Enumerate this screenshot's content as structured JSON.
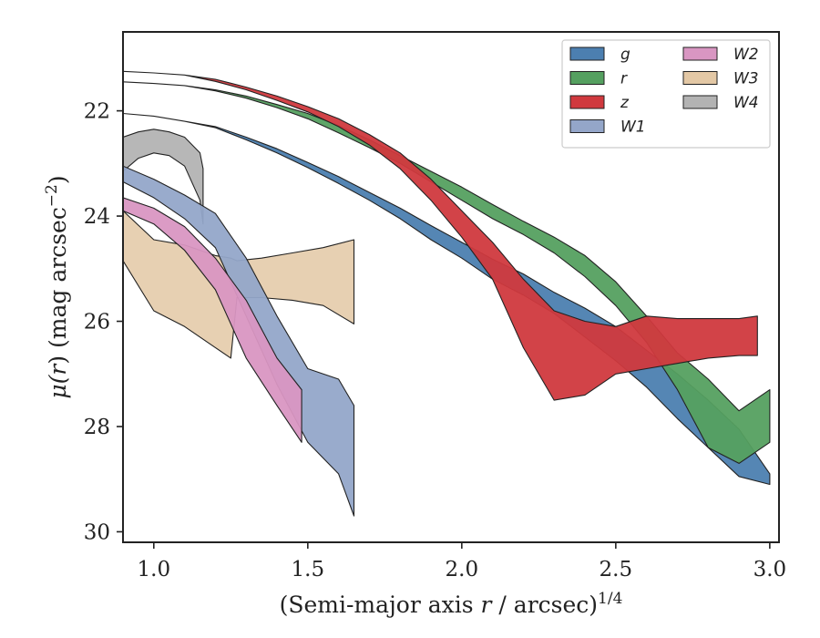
{
  "chart_data": {
    "type": "area",
    "xlabel_main": "(Semi-major axis ",
    "xlabel_var": "r",
    "xlabel_mid": " / arcsec)",
    "xlabel_sup": "1/4",
    "ylabel_main": "μ(",
    "ylabel_var": "r",
    "ylabel_mid": ") (mag arcsec",
    "ylabel_sup": "−2",
    "ylabel_end": ")",
    "xlim": [
      0.9,
      3.03
    ],
    "ylim": [
      30.2,
      20.5
    ],
    "xticks": [
      1.0,
      1.5,
      2.0,
      2.5,
      3.0
    ],
    "xtick_labels": [
      "1.0",
      "1.5",
      "2.0",
      "2.5",
      "3.0"
    ],
    "yticks": [
      22,
      24,
      26,
      28,
      30
    ],
    "ytick_labels": [
      "22",
      "24",
      "26",
      "28",
      "30"
    ],
    "legend_position": "top-right",
    "legend_columns": 2,
    "series": [
      {
        "name": "g",
        "color": "#4c7fb0",
        "x": [
          0.9,
          1.0,
          1.1,
          1.2,
          1.3,
          1.4,
          1.5,
          1.6,
          1.7,
          1.8,
          1.9,
          2.0,
          2.1,
          2.2,
          2.3,
          2.4,
          2.5,
          2.6,
          2.7,
          2.8,
          2.9,
          3.0
        ],
        "lower": [
          22.05,
          22.1,
          22.2,
          22.3,
          22.5,
          22.72,
          22.98,
          23.25,
          23.55,
          23.85,
          24.18,
          24.5,
          24.82,
          25.1,
          25.45,
          25.75,
          26.1,
          26.55,
          27.0,
          27.5,
          28.05,
          28.9
        ],
        "upper": [
          22.05,
          22.1,
          22.2,
          22.32,
          22.55,
          22.8,
          23.08,
          23.38,
          23.7,
          24.05,
          24.45,
          24.8,
          25.2,
          25.5,
          25.85,
          26.3,
          26.75,
          27.25,
          27.85,
          28.4,
          28.95,
          29.1
        ]
      },
      {
        "name": "r",
        "color": "#55a060",
        "x": [
          0.9,
          1.0,
          1.1,
          1.2,
          1.3,
          1.4,
          1.5,
          1.6,
          1.7,
          1.8,
          1.9,
          2.0,
          2.1,
          2.2,
          2.3,
          2.4,
          2.5,
          2.6,
          2.7,
          2.8,
          2.9,
          3.0
        ],
        "lower": [
          21.45,
          21.48,
          21.52,
          21.6,
          21.72,
          21.88,
          22.05,
          22.28,
          22.55,
          22.85,
          23.15,
          23.45,
          23.78,
          24.1,
          24.4,
          24.75,
          25.25,
          25.9,
          26.6,
          27.1,
          27.7,
          27.3
        ],
        "upper": [
          21.45,
          21.48,
          21.52,
          21.62,
          21.76,
          21.94,
          22.15,
          22.42,
          22.7,
          23.0,
          23.35,
          23.7,
          24.05,
          24.35,
          24.7,
          25.15,
          25.7,
          26.4,
          27.3,
          28.4,
          28.7,
          28.3
        ]
      },
      {
        "name": "z",
        "color": "#d0393e",
        "x": [
          0.9,
          1.0,
          1.1,
          1.2,
          1.3,
          1.4,
          1.5,
          1.6,
          1.7,
          1.8,
          1.9,
          2.0,
          2.1,
          2.2,
          2.3,
          2.4,
          2.5,
          2.6,
          2.7,
          2.8,
          2.9,
          2.96
        ],
        "lower": [
          21.25,
          21.28,
          21.32,
          21.4,
          21.55,
          21.72,
          21.92,
          22.15,
          22.45,
          22.8,
          23.3,
          23.9,
          24.5,
          25.2,
          25.8,
          26.0,
          26.1,
          25.9,
          25.95,
          25.95,
          25.95,
          25.9
        ],
        "upper": [
          21.25,
          21.28,
          21.32,
          21.44,
          21.6,
          21.8,
          22.02,
          22.3,
          22.65,
          23.1,
          23.7,
          24.4,
          25.2,
          26.5,
          27.5,
          27.4,
          27.0,
          26.9,
          26.8,
          26.7,
          26.65,
          26.65
        ]
      },
      {
        "name": "W1",
        "color": "#94a6c9",
        "x": [
          0.9,
          1.0,
          1.1,
          1.2,
          1.3,
          1.4,
          1.5,
          1.6,
          1.65
        ],
        "lower": [
          23.05,
          23.3,
          23.6,
          23.95,
          24.8,
          25.9,
          26.9,
          27.1,
          27.6
        ],
        "upper": [
          23.35,
          23.65,
          24.05,
          24.6,
          25.9,
          27.2,
          28.3,
          28.9,
          29.7
        ]
      },
      {
        "name": "W2",
        "color": "#d996c2",
        "x": [
          0.9,
          1.0,
          1.1,
          1.2,
          1.3,
          1.4,
          1.48
        ],
        "lower": [
          23.65,
          23.85,
          24.2,
          24.8,
          25.6,
          26.7,
          27.3
        ],
        "upper": [
          23.9,
          24.15,
          24.65,
          25.4,
          26.7,
          27.6,
          28.3
        ]
      },
      {
        "name": "W3",
        "color": "#e3c8a5",
        "x": [
          0.9,
          1.0,
          1.1,
          1.2,
          1.25,
          1.27,
          1.35,
          1.45,
          1.55,
          1.65
        ],
        "lower": [
          23.9,
          24.45,
          24.55,
          24.75,
          24.8,
          24.85,
          24.8,
          24.7,
          24.6,
          24.45
        ],
        "upper": [
          24.85,
          25.8,
          26.1,
          26.5,
          26.7,
          25.55,
          25.55,
          25.6,
          25.7,
          26.05
        ]
      },
      {
        "name": "W4",
        "color": "#b3b3b3",
        "x": [
          0.9,
          0.95,
          1.0,
          1.05,
          1.1,
          1.15,
          1.16
        ],
        "lower": [
          22.5,
          22.4,
          22.35,
          22.4,
          22.5,
          22.8,
          23.1
        ],
        "upper": [
          23.15,
          22.9,
          22.8,
          22.85,
          23.05,
          23.7,
          24.15
        ]
      }
    ]
  }
}
